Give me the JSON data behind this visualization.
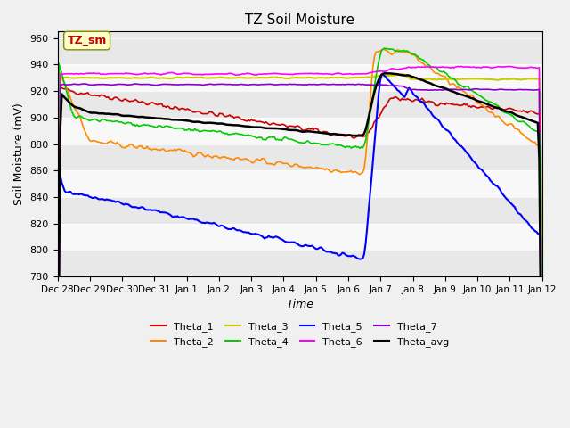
{
  "title": "TZ Soil Moisture",
  "xlabel": "Time",
  "ylabel": "Soil Moisture (mV)",
  "ylim": [
    780,
    965
  ],
  "yticks": [
    780,
    800,
    820,
    840,
    860,
    880,
    900,
    920,
    940,
    960
  ],
  "plot_bg_alternating": [
    "#e8e8e8",
    "#f8f8f8"
  ],
  "legend_label": "TZ_sm",
  "series": {
    "Theta_1": {
      "color": "#cc0000",
      "lw": 1.2
    },
    "Theta_2": {
      "color": "#ff8800",
      "lw": 1.2
    },
    "Theta_3": {
      "color": "#cccc00",
      "lw": 1.5
    },
    "Theta_4": {
      "color": "#00cc00",
      "lw": 1.2
    },
    "Theta_5": {
      "color": "#0000ff",
      "lw": 1.5
    },
    "Theta_6": {
      "color": "#ff00ff",
      "lw": 1.2
    },
    "Theta_7": {
      "color": "#8800cc",
      "lw": 1.2
    },
    "Theta_avg": {
      "color": "#000000",
      "lw": 1.8
    }
  },
  "num_points": 336,
  "tick_positions": [
    0,
    1,
    2,
    3,
    4,
    5,
    6,
    7,
    8,
    9,
    10,
    11,
    12,
    13,
    14,
    15
  ],
  "tick_labels": [
    "Dec 28",
    "Dec 29",
    "Dec 30",
    "Dec 31",
    "Jan 1",
    "Jan 2",
    "Jan 3",
    "Jan 4",
    "Jan 5",
    "Jan 6",
    "Jan 7",
    "Jan 8",
    "Jan 9",
    "Jan 10",
    "Jan 11",
    "Jan 12"
  ]
}
